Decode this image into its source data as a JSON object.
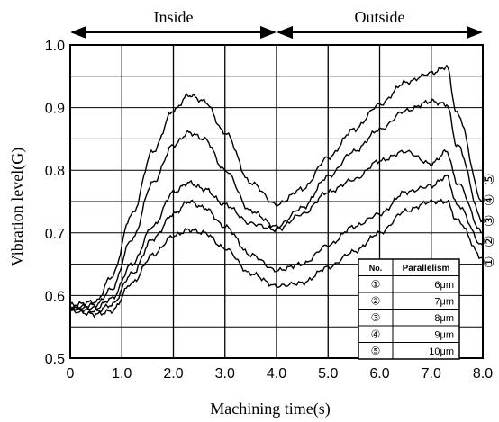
{
  "chart_data": {
    "type": "line",
    "xlabel": "Machining time(s)",
    "ylabel": "Vibration level(G)",
    "xlim": [
      0,
      8.0
    ],
    "ylim": [
      0.5,
      1.0
    ],
    "x_ticks": [
      "0",
      "1.0",
      "2.0",
      "3.0",
      "4.0",
      "5.0",
      "6.0",
      "7.0",
      "8.0"
    ],
    "y_ticks": [
      "0.5",
      "0.6",
      "0.7",
      "0.8",
      "0.9",
      "1.0"
    ],
    "grid": true,
    "regions": [
      {
        "label": "Inside",
        "from": 0,
        "to": 4.0
      },
      {
        "label": "Outside",
        "from": 4.0,
        "to": 8.0
      }
    ],
    "series_labels": [
      "①",
      "②",
      "③",
      "④",
      "⑤"
    ],
    "series": [
      {
        "name": "①",
        "x": [
          0,
          0.5,
          0.8,
          1.2,
          1.6,
          2.0,
          2.3,
          2.6,
          3.0,
          3.5,
          4.0,
          4.5,
          5.0,
          5.5,
          6.0,
          6.5,
          7.0,
          7.3,
          7.5,
          8.0
        ],
        "values": [
          0.575,
          0.57,
          0.575,
          0.62,
          0.665,
          0.695,
          0.705,
          0.7,
          0.675,
          0.635,
          0.615,
          0.62,
          0.645,
          0.67,
          0.7,
          0.735,
          0.75,
          0.75,
          0.72,
          0.66
        ]
      },
      {
        "name": "②",
        "x": [
          0,
          0.5,
          0.8,
          1.2,
          1.6,
          2.0,
          2.3,
          2.6,
          3.0,
          3.5,
          4.0,
          4.5,
          5.0,
          5.5,
          6.0,
          6.5,
          7.0,
          7.3,
          7.5,
          8.0
        ],
        "values": [
          0.58,
          0.575,
          0.585,
          0.635,
          0.69,
          0.73,
          0.75,
          0.74,
          0.71,
          0.665,
          0.64,
          0.65,
          0.68,
          0.71,
          0.73,
          0.765,
          0.775,
          0.79,
          0.745,
          0.68
        ]
      },
      {
        "name": "③",
        "x": [
          0,
          0.5,
          0.8,
          1.2,
          1.6,
          2.0,
          2.3,
          2.6,
          3.0,
          3.5,
          4.0,
          4.5,
          5.0,
          5.5,
          6.0,
          6.5,
          7.0,
          7.3,
          7.5,
          8.0
        ],
        "values": [
          0.58,
          0.58,
          0.595,
          0.65,
          0.71,
          0.765,
          0.78,
          0.77,
          0.745,
          0.715,
          0.705,
          0.73,
          0.765,
          0.785,
          0.815,
          0.83,
          0.81,
          0.83,
          0.78,
          0.7
        ]
      },
      {
        "name": "④",
        "x": [
          0,
          0.5,
          0.8,
          1.2,
          1.6,
          2.0,
          2.3,
          2.6,
          3.0,
          3.5,
          4.0,
          4.5,
          5.0,
          5.5,
          6.0,
          6.5,
          7.0,
          7.3,
          7.5,
          8.0
        ],
        "values": [
          0.58,
          0.585,
          0.61,
          0.69,
          0.78,
          0.84,
          0.86,
          0.85,
          0.8,
          0.735,
          0.71,
          0.74,
          0.79,
          0.83,
          0.865,
          0.895,
          0.91,
          0.905,
          0.84,
          0.72
        ]
      },
      {
        "name": "⑤",
        "x": [
          0,
          0.5,
          0.8,
          1.2,
          1.6,
          2.0,
          2.3,
          2.6,
          3.0,
          3.5,
          4.0,
          4.5,
          5.0,
          5.5,
          6.0,
          6.5,
          7.0,
          7.3,
          7.5,
          8.0
        ],
        "values": [
          0.585,
          0.59,
          0.63,
          0.73,
          0.83,
          0.895,
          0.92,
          0.91,
          0.86,
          0.78,
          0.745,
          0.77,
          0.82,
          0.865,
          0.905,
          0.94,
          0.955,
          0.965,
          0.89,
          0.75
        ]
      }
    ],
    "table": {
      "headers": [
        "No.",
        "Parallelism"
      ],
      "rows": [
        [
          "①",
          "6μm"
        ],
        [
          "②",
          "7μm"
        ],
        [
          "③",
          "8μm"
        ],
        [
          "④",
          "9μm"
        ],
        [
          "⑤",
          "10μm"
        ]
      ]
    },
    "colors": {
      "line": "#000000",
      "background": "#ffffff"
    }
  }
}
